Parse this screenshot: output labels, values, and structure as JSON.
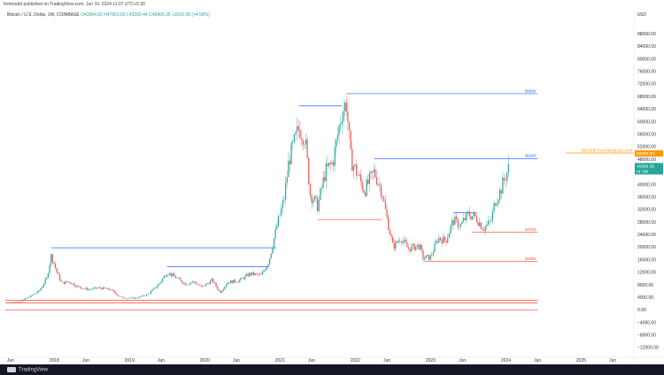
{
  "header": {
    "published": "fremoodd published on TradingView.com, Jun 10, 2024 11:07 UTC+5:30",
    "symbol": "Bitcoin / U.S. Dollar, 1W, COINBASE",
    "ohlc": "O43954.52  H47901.00  L43200.44  C45965.35  +2015.08 (+4.58%)",
    "currency": "USD"
  },
  "footer": {
    "brand": "TradingView"
  },
  "colors": {
    "bull": "#26a69a",
    "bear": "#ef5350",
    "blue_line": "#2962ff",
    "red_line": "#f44336",
    "orange_line": "#ff9800",
    "price_badge": "#26a69a"
  },
  "chart_data": {
    "type": "candlestick",
    "y_ticks": [
      "88000.00",
      "84000.00",
      "80000.00",
      "76000.00",
      "72000.00",
      "68000.00",
      "64000.00",
      "60000.00",
      "56000.00",
      "52000.00",
      "48000.00",
      "44000.00",
      "40000.00",
      "36000.00",
      "32000.00",
      "28000.00",
      "24000.00",
      "20000.00",
      "16000.00",
      "12000.00",
      "8000.00",
      "4000.00",
      "0.00",
      "−4000.00",
      "−8000.00",
      "−12000.00"
    ],
    "y_tick_values": [
      88000,
      84000,
      80000,
      76000,
      72000,
      68000,
      64000,
      60000,
      56000,
      52000,
      48000,
      44000,
      40000,
      36000,
      32000,
      28000,
      24000,
      20000,
      16000,
      12000,
      8000,
      4000,
      0,
      -4000,
      -8000,
      -12000
    ],
    "ylim": [
      -14000,
      92000
    ],
    "x_ticks": [
      {
        "label": "Jun",
        "t": 2017.42
      },
      {
        "label": "2018",
        "t": 2018.0
      },
      {
        "label": "Jun",
        "t": 2018.42
      },
      {
        "label": "2019",
        "t": 2019.0
      },
      {
        "label": "Jun",
        "t": 2019.42
      },
      {
        "label": "2020",
        "t": 2020.0
      },
      {
        "label": "Jun",
        "t": 2020.42
      },
      {
        "label": "2021",
        "t": 2021.0
      },
      {
        "label": "Jun",
        "t": 2021.42
      },
      {
        "label": "2022",
        "t": 2022.0
      },
      {
        "label": "Jun",
        "t": 2022.42
      },
      {
        "label": "2023",
        "t": 2023.0
      },
      {
        "label": "Jun",
        "t": 2023.42
      },
      {
        "label": "2024",
        "t": 2024.0
      },
      {
        "label": "Jun",
        "t": 2024.42
      },
      {
        "label": "2025",
        "t": 2025.0
      },
      {
        "label": "Jun",
        "t": 2025.42
      }
    ],
    "xlim": [
      2017.35,
      2025.7
    ],
    "series": [
      {
        "t": 2017.4,
        "price": 2400
      },
      {
        "t": 2017.55,
        "price": 2700
      },
      {
        "t": 2017.68,
        "price": 4300
      },
      {
        "t": 2017.8,
        "price": 6000
      },
      {
        "t": 2017.9,
        "price": 10000
      },
      {
        "t": 2017.96,
        "price": 17500
      },
      {
        "t": 2018.04,
        "price": 11500
      },
      {
        "t": 2018.1,
        "price": 8500
      },
      {
        "t": 2018.2,
        "price": 9000
      },
      {
        "t": 2018.3,
        "price": 7500
      },
      {
        "t": 2018.45,
        "price": 6500
      },
      {
        "t": 2018.6,
        "price": 7000
      },
      {
        "t": 2018.75,
        "price": 6400
      },
      {
        "t": 2018.88,
        "price": 4000
      },
      {
        "t": 2018.96,
        "price": 3700
      },
      {
        "t": 2019.1,
        "price": 3800
      },
      {
        "t": 2019.25,
        "price": 5000
      },
      {
        "t": 2019.4,
        "price": 8500
      },
      {
        "t": 2019.5,
        "price": 12000
      },
      {
        "t": 2019.6,
        "price": 10500
      },
      {
        "t": 2019.75,
        "price": 8200
      },
      {
        "t": 2019.85,
        "price": 9000
      },
      {
        "t": 2019.96,
        "price": 7200
      },
      {
        "t": 2020.1,
        "price": 9500
      },
      {
        "t": 2020.2,
        "price": 5500
      },
      {
        "t": 2020.3,
        "price": 8800
      },
      {
        "t": 2020.45,
        "price": 9300
      },
      {
        "t": 2020.6,
        "price": 11500
      },
      {
        "t": 2020.75,
        "price": 11000
      },
      {
        "t": 2020.85,
        "price": 15500
      },
      {
        "t": 2020.95,
        "price": 26000
      },
      {
        "t": 2021.05,
        "price": 35000
      },
      {
        "t": 2021.12,
        "price": 48000
      },
      {
        "t": 2021.25,
        "price": 58000
      },
      {
        "t": 2021.33,
        "price": 55000
      },
      {
        "t": 2021.4,
        "price": 37000
      },
      {
        "t": 2021.5,
        "price": 33000
      },
      {
        "t": 2021.6,
        "price": 44000
      },
      {
        "t": 2021.7,
        "price": 47000
      },
      {
        "t": 2021.82,
        "price": 63000
      },
      {
        "t": 2021.88,
        "price": 66000
      },
      {
        "t": 2021.94,
        "price": 48000
      },
      {
        "t": 2022.05,
        "price": 42000
      },
      {
        "t": 2022.12,
        "price": 38000
      },
      {
        "t": 2022.25,
        "price": 44000
      },
      {
        "t": 2022.35,
        "price": 38000
      },
      {
        "t": 2022.42,
        "price": 29000
      },
      {
        "t": 2022.5,
        "price": 20000
      },
      {
        "t": 2022.6,
        "price": 23000
      },
      {
        "t": 2022.7,
        "price": 19500
      },
      {
        "t": 2022.85,
        "price": 20500
      },
      {
        "t": 2022.9,
        "price": 16500
      },
      {
        "t": 2023.0,
        "price": 16800
      },
      {
        "t": 2023.1,
        "price": 23000
      },
      {
        "t": 2023.2,
        "price": 22000
      },
      {
        "t": 2023.3,
        "price": 28500
      },
      {
        "t": 2023.4,
        "price": 27000
      },
      {
        "t": 2023.5,
        "price": 30500
      },
      {
        "t": 2023.6,
        "price": 29500
      },
      {
        "t": 2023.7,
        "price": 26000
      },
      {
        "t": 2023.8,
        "price": 28000
      },
      {
        "t": 2023.86,
        "price": 35000
      },
      {
        "t": 2023.92,
        "price": 37500
      },
      {
        "t": 2024.0,
        "price": 43000
      },
      {
        "t": 2024.05,
        "price": 45965
      }
    ],
    "annotations": [
      {
        "label": "68900",
        "price": 68900,
        "color": "#2962ff",
        "t_start": 2021.88,
        "t_end": 2024.42
      },
      {
        "label": "48240",
        "price": 48240,
        "color": "#2962ff",
        "t_start": 2022.25,
        "t_end": 2024.42
      },
      {
        "label": "24750",
        "price": 24750,
        "color": "#f44336",
        "t_start": 2023.55,
        "t_end": 2024.42
      },
      {
        "label": "15480",
        "price": 15480,
        "color": "#f44336",
        "t_start": 2022.92,
        "t_end": 2024.42
      },
      {
        "label": "$50,000 Psychological Level",
        "price": 50000,
        "color": "#ff9800",
        "t_start": 2024.8,
        "t_end": 2025.7
      }
    ],
    "extra_lines": [
      {
        "price": 19800,
        "color": "#2962ff",
        "t_start": 2017.96,
        "t_end": 2020.95
      },
      {
        "price": 13800,
        "color": "#2962ff",
        "t_start": 2019.5,
        "t_end": 2020.85
      },
      {
        "price": 65000,
        "color": "#2962ff",
        "t_start": 2021.25,
        "t_end": 2021.82
      },
      {
        "price": 31000,
        "color": "#2962ff",
        "t_start": 2023.3,
        "t_end": 2023.6
      },
      {
        "price": 28800,
        "color": "#f44336",
        "t_start": 2021.5,
        "t_end": 2022.35
      },
      {
        "price": 3100,
        "color": "#f44336",
        "t_start": 2017.35,
        "t_end": 2024.42
      },
      {
        "price": 2200,
        "color": "#f44336",
        "t_start": 2017.35,
        "t_end": 2024.42
      },
      {
        "price": -100,
        "color": "#f44336",
        "t_start": 2017.35,
        "t_end": 2024.42
      }
    ],
    "price_labels": [
      {
        "label": "50000.00",
        "price": 50000,
        "color": "#ff9800"
      },
      {
        "label": "45965.35\nId 79h",
        "price": 45965,
        "color": "#26a69a"
      }
    ]
  }
}
